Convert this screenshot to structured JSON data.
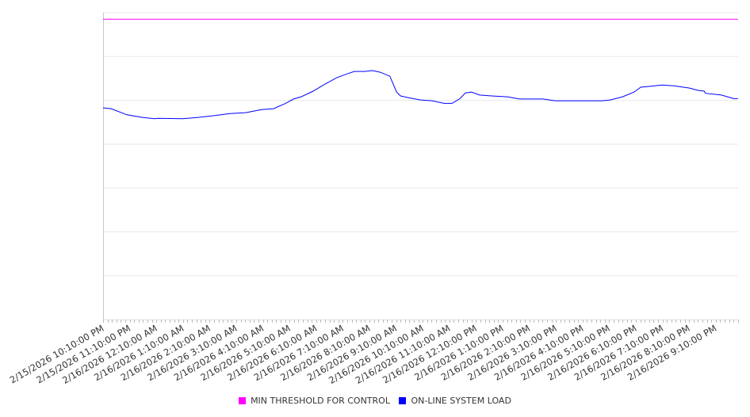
{
  "chart_data": {
    "type": "line",
    "title": "",
    "xlabel": "",
    "ylabel": "",
    "x_unit": "minutes since 2/15/2026 10:10:00 PM",
    "x_range": [
      0,
      1430
    ],
    "ylim": [
      0,
      7
    ],
    "y_gridlines": [
      1,
      2,
      3,
      4,
      5,
      6,
      7
    ],
    "grid": true,
    "legend_position": "bottom",
    "tick_labels": [
      "2/15/2026 10:10:00 PM",
      "2/15/2026 11:10:00 PM",
      "2/16/2026 12:10:00 AM",
      "2/16/2026 1:10:00 AM",
      "2/16/2026 2:10:00 AM",
      "2/16/2026 3:10:00 AM",
      "2/16/2026 4:10:00 AM",
      "2/16/2026 5:10:00 AM",
      "2/16/2026 6:10:00 AM",
      "2/16/2026 7:10:00 AM",
      "2/16/2026 8:10:00 AM",
      "2/16/2026 9:10:00 AM",
      "2/16/2026 10:10:00 AM",
      "2/16/2026 11:10:00 AM",
      "2/16/2026 12:10:00 PM",
      "2/16/2026 1:10:00 PM",
      "2/16/2026 2:10:00 PM",
      "2/16/2026 3:10:00 PM",
      "2/16/2026 4:10:00 PM",
      "2/16/2026 5:10:00 PM",
      "2/16/2026 6:10:00 PM",
      "2/16/2026 7:10:00 PM",
      "2/16/2026 8:10:00 PM",
      "2/16/2026 9:10:00 PM"
    ],
    "series": [
      {
        "name": "MIN THRESHOLD FOR CONTROL",
        "color": "#ff00ff",
        "points": [
          [
            0,
            6.85
          ],
          [
            1430,
            6.85
          ]
        ]
      },
      {
        "name": "ON-LINE SYSTEM LOAD",
        "color": "#0000ff",
        "points": [
          [
            0,
            4.83
          ],
          [
            18,
            4.81
          ],
          [
            54,
            4.67
          ],
          [
            89,
            4.61
          ],
          [
            116,
            4.58
          ],
          [
            125,
            4.59
          ],
          [
            179,
            4.58
          ],
          [
            214,
            4.61
          ],
          [
            250,
            4.65
          ],
          [
            286,
            4.7
          ],
          [
            321,
            4.72
          ],
          [
            357,
            4.79
          ],
          [
            384,
            4.81
          ],
          [
            411,
            4.93
          ],
          [
            429,
            5.03
          ],
          [
            446,
            5.08
          ],
          [
            473,
            5.21
          ],
          [
            500,
            5.37
          ],
          [
            527,
            5.52
          ],
          [
            554,
            5.62
          ],
          [
            566,
            5.66
          ],
          [
            589,
            5.66
          ],
          [
            607,
            5.68
          ],
          [
            625,
            5.64
          ],
          [
            646,
            5.55
          ],
          [
            661,
            5.19
          ],
          [
            670,
            5.1
          ],
          [
            688,
            5.06
          ],
          [
            714,
            5.01
          ],
          [
            741,
            4.99
          ],
          [
            768,
            4.93
          ],
          [
            786,
            4.93
          ],
          [
            804,
            5.04
          ],
          [
            816,
            5.17
          ],
          [
            830,
            5.19
          ],
          [
            848,
            5.12
          ],
          [
            875,
            5.1
          ],
          [
            911,
            5.08
          ],
          [
            938,
            5.03
          ],
          [
            964,
            5.03
          ],
          [
            991,
            5.03
          ],
          [
            1018,
            4.99
          ],
          [
            1054,
            4.99
          ],
          [
            1089,
            4.99
          ],
          [
            1125,
            4.99
          ],
          [
            1143,
            5.01
          ],
          [
            1170,
            5.08
          ],
          [
            1196,
            5.19
          ],
          [
            1211,
            5.3
          ],
          [
            1232,
            5.32
          ],
          [
            1259,
            5.35
          ],
          [
            1286,
            5.33
          ],
          [
            1321,
            5.28
          ],
          [
            1339,
            5.23
          ],
          [
            1354,
            5.21
          ],
          [
            1357,
            5.16
          ],
          [
            1393,
            5.12
          ],
          [
            1420,
            5.04
          ],
          [
            1430,
            5.04
          ]
        ]
      }
    ]
  },
  "legend": {
    "items": [
      {
        "label": "MIN THRESHOLD FOR CONTROL",
        "color": "#ff00ff"
      },
      {
        "label": "ON-LINE SYSTEM LOAD",
        "color": "#0000ff"
      }
    ]
  }
}
